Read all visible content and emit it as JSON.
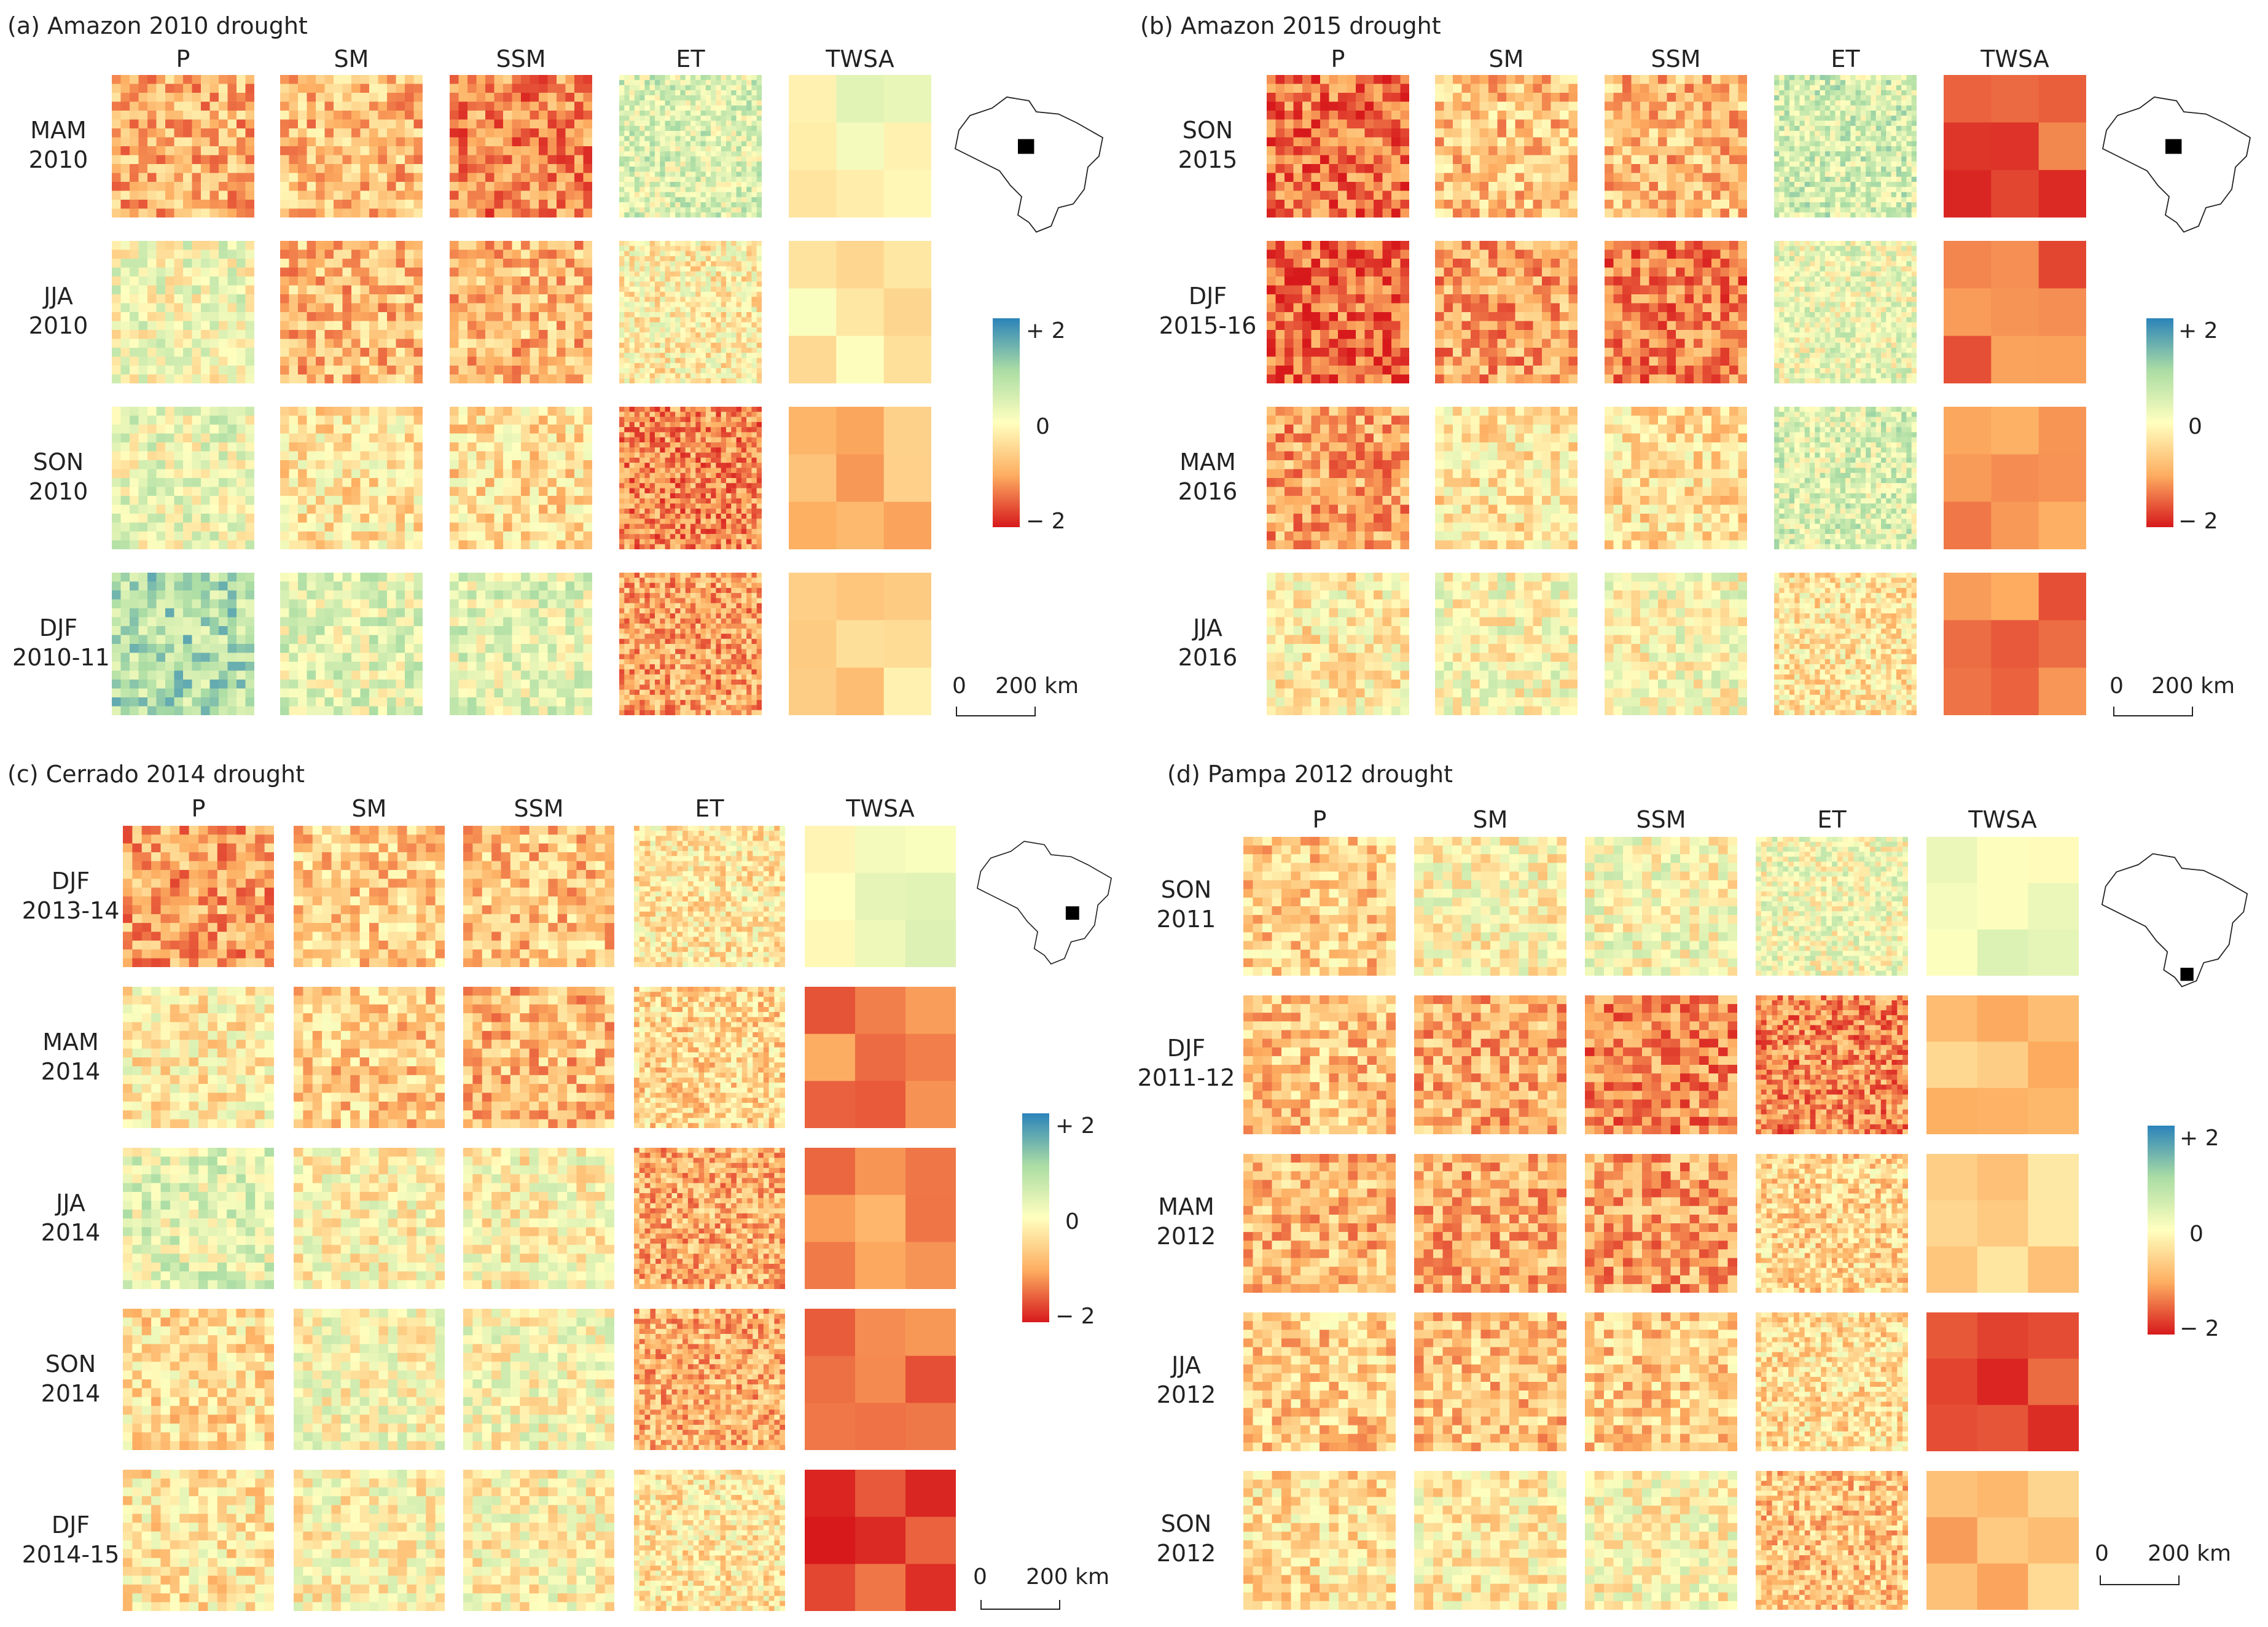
{
  "colors": {
    "scale": [
      "#d7191c",
      "#fdae61",
      "#ffffbf",
      "#abdda4",
      "#2b83ba"
    ],
    "tick_text": "#222222"
  },
  "colorbar": {
    "tick_max": "+ 2",
    "tick_mid": "0",
    "tick_min": "− 2"
  },
  "scalebar": {
    "zero": "0",
    "distance": "200 km"
  },
  "panels": [
    {
      "title": "(a) Amazon 2010 drought",
      "columns": [
        "P",
        "SM",
        "SSM",
        "ET",
        "TWSA"
      ],
      "rows": [
        {
          "line1": "MAM",
          "line2": "2010"
        },
        {
          "line1": "JJA",
          "line2": "2010"
        },
        {
          "line1": "SON",
          "line2": "2010"
        },
        {
          "line1": "DJF",
          "line2": "2010-11"
        }
      ],
      "map_icon": "brazil-map-icon",
      "grid": [
        [
          -0.9,
          -0.8,
          -1.2,
          0.4,
          0.0
        ],
        [
          0.1,
          -0.8,
          -0.8,
          -0.2,
          -0.2
        ],
        [
          0.2,
          -0.3,
          -0.4,
          -1.2,
          -0.8
        ],
        [
          0.9,
          0.3,
          0.3,
          -1.0,
          -0.5
        ]
      ]
    },
    {
      "title": "(b) Amazon 2015 drought",
      "columns": [
        "P",
        "SM",
        "SSM",
        "ET",
        "TWSA"
      ],
      "rows": [
        {
          "line1": "SON",
          "line2": "2015"
        },
        {
          "line1": "DJF",
          "line2": "2015-16"
        },
        {
          "line1": "MAM",
          "line2": "2016"
        },
        {
          "line1": "JJA",
          "line2": "2016"
        }
      ],
      "map_icon": "brazil-map-icon",
      "grid": [
        [
          -1.4,
          -0.7,
          -0.8,
          0.5,
          -1.6
        ],
        [
          -1.5,
          -1.0,
          -1.3,
          0.2,
          -1.4
        ],
        [
          -1.0,
          -0.3,
          -0.4,
          0.4,
          -1.2
        ],
        [
          -0.2,
          0.0,
          0.0,
          -0.3,
          -1.3
        ]
      ]
    },
    {
      "title": "(c) Cerrado 2014 drought",
      "columns": [
        "P",
        "SM",
        "SSM",
        "ET",
        "TWSA"
      ],
      "rows": [
        {
          "line1": "DJF",
          "line2": "2013-14"
        },
        {
          "line1": "MAM",
          "line2": "2014"
        },
        {
          "line1": "JJA",
          "line2": "2014"
        },
        {
          "line1": "SON",
          "line2": "2014"
        },
        {
          "line1": "DJF",
          "line2": "2014-15"
        }
      ],
      "map_icon": "brazil-map-icon",
      "grid": [
        [
          -1.0,
          -0.6,
          -0.7,
          -0.3,
          0.2
        ],
        [
          -0.2,
          -0.6,
          -0.8,
          -0.5,
          -1.3
        ],
        [
          0.3,
          -0.1,
          -0.1,
          -0.9,
          -1.2
        ],
        [
          -0.4,
          0.0,
          0.0,
          -0.9,
          -1.3
        ],
        [
          -0.3,
          -0.1,
          -0.1,
          -0.3,
          -1.7
        ]
      ]
    },
    {
      "title": "(d) Pampa 2012 drought",
      "columns": [
        "P",
        "SM",
        "SSM",
        "ET",
        "TWSA"
      ],
      "rows": [
        {
          "line1": "SON",
          "line2": "2011"
        },
        {
          "line1": "DJF",
          "line2": "2011-12"
        },
        {
          "line1": "MAM",
          "line2": "2012"
        },
        {
          "line1": "JJA",
          "line2": "2012"
        },
        {
          "line1": "SON",
          "line2": "2012"
        }
      ],
      "map_icon": "brazil-map-icon",
      "grid": [
        [
          -0.6,
          -0.1,
          0.0,
          0.1,
          0.3
        ],
        [
          -0.7,
          -0.9,
          -1.2,
          -1.2,
          -0.8
        ],
        [
          -0.8,
          -0.9,
          -1.0,
          -0.5,
          -0.6
        ],
        [
          -0.6,
          -0.7,
          -0.6,
          -0.4,
          -1.6
        ],
        [
          -0.4,
          -0.2,
          -0.1,
          -0.7,
          -0.8
        ]
      ]
    }
  ]
}
